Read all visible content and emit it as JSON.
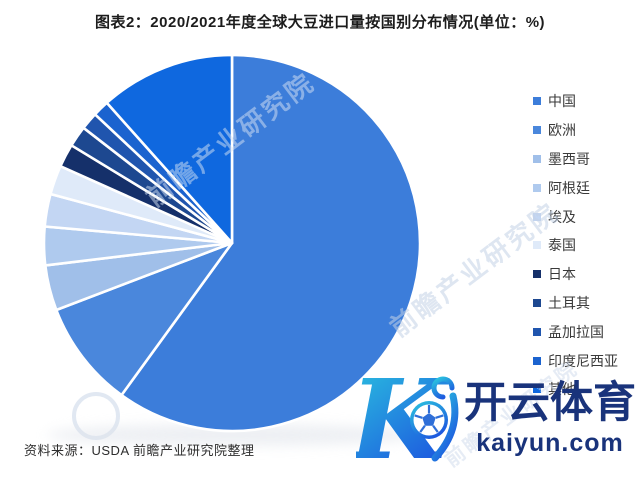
{
  "chart_data": {
    "type": "pie",
    "title": "图表2：2020/2021年度全球大豆进口量按国别分布情况(单位：%)",
    "unit": "%",
    "legend_position": "right",
    "start_angle_deg": 0,
    "direction": "clockwise",
    "values_note": "no numeric data labels shown; percentages estimated from slice angles",
    "categories": [
      "中国",
      "欧洲",
      "墨西哥",
      "阿根廷",
      "埃及",
      "泰国",
      "日本",
      "土耳其",
      "孟加拉国",
      "印度尼西亚",
      "其他"
    ],
    "values": [
      60.0,
      9.2,
      3.9,
      3.3,
      2.8,
      2.5,
      2.0,
      1.8,
      1.5,
      1.4,
      11.6
    ],
    "colors": [
      "#3C7DDA",
      "#4A87DC",
      "#A0BFE9",
      "#AFCAEE",
      "#C3D6F3",
      "#DFEAF9",
      "#15306A",
      "#1D4890",
      "#2055AE",
      "#1B63CF",
      "#0F68DF"
    ]
  },
  "source": {
    "text": "资料来源：USDA 前瞻产业研究院整理"
  },
  "watermark": {
    "brand": "开云体育",
    "domain": "kaiyun.com",
    "logo_letter": "K",
    "gradient_start": "#2BC8DF",
    "gradient_end": "#1D58DF",
    "text_color": "#19337B"
  },
  "background_watermark": {
    "text": "前瞻产业研究院"
  }
}
